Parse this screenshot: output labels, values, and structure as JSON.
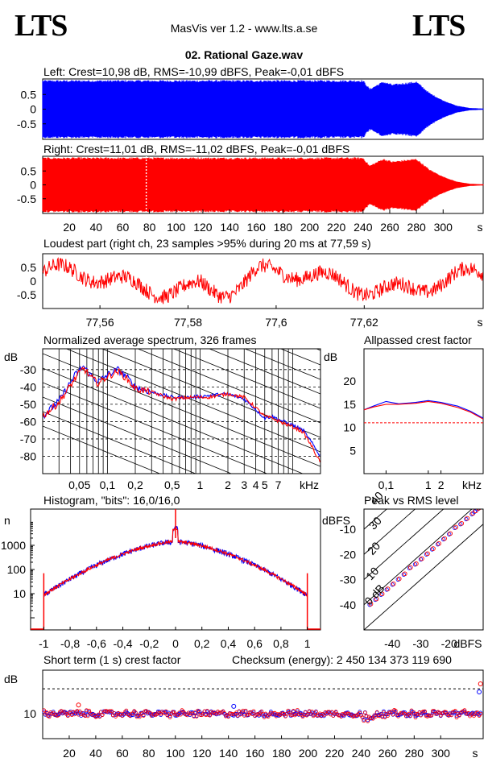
{
  "header": {
    "brand_left": "LTS",
    "brand_right": "LTS",
    "app_title": "MasVis ver 1.2 - www.lts.a.se",
    "file_title": "02. Rational Gaze.wav"
  },
  "colors": {
    "left": "#0000ff",
    "right": "#ff0000",
    "ref_line": "#ff0000"
  },
  "chart_data": [
    {
      "type": "area",
      "name": "left-waveform",
      "title": "Left: Crest=10,98 dB, RMS=-10,99 dBFS, Peak=-0,01 dBFS",
      "ytick_labels": [
        "0.5",
        "0",
        "-0.5"
      ],
      "ylim": [
        -1,
        1
      ],
      "x_end_s": 330,
      "envelope": {
        "x": [
          0,
          240,
          245,
          255,
          262,
          280,
          290,
          300,
          310,
          320,
          330
        ],
        "amplitude": [
          0.99,
          0.99,
          0.7,
          0.95,
          0.85,
          0.95,
          0.55,
          0.3,
          0.12,
          0.04,
          0.02
        ]
      }
    },
    {
      "type": "area",
      "name": "right-waveform",
      "title": "Right: Crest=11,01 dB, RMS=-11,02 dBFS, Peak=-0,01 dBFS",
      "ytick_labels": [
        "0.5",
        "0",
        "-0.5"
      ],
      "ylim": [
        -1,
        1
      ],
      "x_ticks": [
        20,
        40,
        60,
        80,
        100,
        120,
        140,
        160,
        180,
        200,
        220,
        240,
        260,
        280,
        300
      ],
      "x_unit": "s",
      "marker_s": 77.59
    },
    {
      "type": "line",
      "name": "loudest-part",
      "title": "Loudest part (right ch, 23 samples >95% during 20 ms at 77,59 s)",
      "ytick_labels": [
        "0.5",
        "0",
        "-0.5"
      ],
      "x_tick_labels": [
        "77,56",
        "77,58",
        "77,6",
        "77,62"
      ],
      "x_tick_values": [
        77.56,
        77.58,
        77.6,
        77.62
      ],
      "xlim": [
        77.547,
        77.647
      ],
      "x_unit": "s"
    },
    {
      "type": "line",
      "name": "normalized-spectrum",
      "title": "Normalized average spectrum, 326 frames",
      "ylabel": "dB",
      "ytick_labels": [
        "-30",
        "-40",
        "-50",
        "-60",
        "-70",
        "-80"
      ],
      "x_tick_labels": [
        "0,05",
        "0,1",
        "0,2",
        "0,5",
        "1",
        "2",
        "3",
        "4",
        "5",
        "7",
        "kHz"
      ],
      "xlim_khz": [
        0.02,
        20
      ],
      "ylim": [
        -90,
        -18
      ],
      "series": [
        {
          "color": "blue",
          "x_khz": [
            0.02,
            0.03,
            0.045,
            0.055,
            0.065,
            0.08,
            0.1,
            0.13,
            0.16,
            0.2,
            0.3,
            0.5,
            0.8,
            1.2,
            2,
            3,
            4,
            5,
            6,
            8,
            10,
            13,
            16,
            20
          ],
          "values": [
            -57,
            -48,
            -33,
            -28,
            -33,
            -37,
            -33,
            -30,
            -34,
            -40,
            -43,
            -46,
            -46,
            -45,
            -44,
            -47,
            -53,
            -58,
            -57,
            -60,
            -62,
            -65,
            -72,
            -80
          ]
        },
        {
          "color": "red",
          "x_khz": [
            0.02,
            0.03,
            0.045,
            0.055,
            0.065,
            0.08,
            0.1,
            0.13,
            0.16,
            0.2,
            0.3,
            0.5,
            0.8,
            1.2,
            2,
            3,
            4,
            5,
            6,
            8,
            10,
            13,
            16,
            20
          ],
          "values": [
            -57,
            -49,
            -35,
            -29,
            -34,
            -38,
            -34,
            -31,
            -35,
            -41,
            -43,
            -47,
            -46,
            -46,
            -44,
            -46,
            -52,
            -57,
            -58,
            -61,
            -63,
            -66,
            -74,
            -84
          ]
        }
      ]
    },
    {
      "type": "line",
      "name": "allpassed-crest-factor",
      "title": "Allpassed crest factor",
      "ylabel": "dB",
      "ytick_labels": [
        "20",
        "15",
        "10",
        "5"
      ],
      "x_tick_labels": [
        "0,1",
        "1",
        "2",
        "kHz"
      ],
      "ylim": [
        0,
        27
      ],
      "xlim_khz": [
        0.03,
        20
      ],
      "reference_db": 11,
      "series": [
        {
          "color": "blue",
          "x_khz": [
            0.03,
            0.05,
            0.1,
            0.2,
            0.5,
            1,
            2,
            5,
            10,
            20
          ],
          "values": [
            13.8,
            14.6,
            15.6,
            15.1,
            15.4,
            15.8,
            15.4,
            14.6,
            13.5,
            12.0
          ]
        },
        {
          "color": "red",
          "x_khz": [
            0.03,
            0.05,
            0.1,
            0.2,
            0.5,
            1,
            2,
            5,
            10,
            20
          ],
          "values": [
            13.8,
            14.4,
            15.0,
            15.0,
            15.2,
            15.6,
            15.2,
            14.3,
            13.3,
            11.8
          ]
        }
      ]
    },
    {
      "type": "line",
      "name": "histogram",
      "title": "Histogram, \"bits\": 16,0/16,0",
      "ylabel": "n",
      "ytick_labels": [
        "1000",
        "100",
        "10"
      ],
      "yscale": "log",
      "x_tick_labels": [
        "-1",
        "-0,8",
        "-0,6",
        "-0,4",
        "-0,2",
        "0",
        "0,2",
        "0,4",
        "0,6",
        "0,8",
        "1"
      ],
      "xlim": [
        -1.1,
        1.1
      ]
    },
    {
      "type": "scatter",
      "name": "peak-vs-rms",
      "title": "Peak vs RMS level",
      "ylabel": "dBFS",
      "xlabel": "dBFS",
      "ytick_labels": [
        "-10",
        "-20",
        "-30",
        "-40"
      ],
      "x_tick_labels": [
        "-40",
        "-30",
        "-20"
      ],
      "xlim": [
        -50,
        -8
      ],
      "ylim": [
        -50,
        -2
      ],
      "diagonal_labels": [
        "40",
        "30",
        "20",
        "10",
        "0 dB"
      ],
      "points": {
        "x": [
          -48,
          -46,
          -44,
          -42,
          -40,
          -38,
          -36,
          -34,
          -32,
          -30,
          -28,
          -26,
          -24,
          -22,
          -20,
          -18,
          -16,
          -14,
          -12,
          -11,
          -10
        ],
        "y": [
          -40,
          -38,
          -36,
          -34,
          -32,
          -30,
          -28,
          -25.5,
          -24,
          -22,
          -20,
          -18,
          -16,
          -14,
          -12,
          -9.5,
          -8,
          -6,
          -4,
          -3,
          -2
        ]
      }
    },
    {
      "type": "scatter",
      "name": "short-term-crest",
      "title": "Short term (1 s) crest factor",
      "subtitle": "Checksum (energy):  2 450 134 373 119 690",
      "ylabel": "dB",
      "ytick_labels": [
        "10"
      ],
      "reference_db": 14,
      "x_ticks": [
        20,
        40,
        60,
        80,
        100,
        120,
        140,
        160,
        180,
        200,
        220,
        240,
        260,
        280,
        300
      ],
      "x_unit": "s",
      "xlim": [
        0,
        332
      ],
      "ylim": [
        6,
        17
      ]
    }
  ]
}
